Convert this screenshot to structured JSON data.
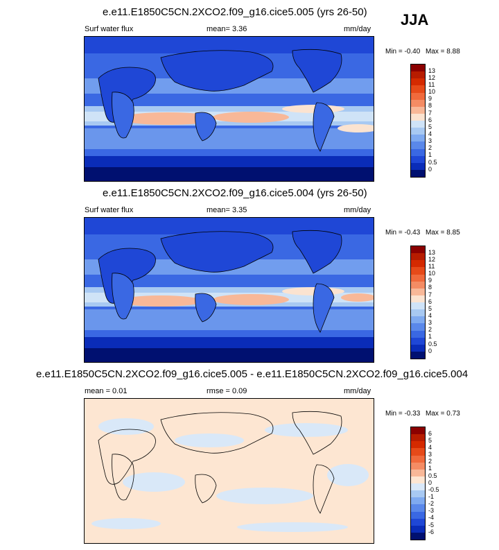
{
  "season": "JJA",
  "panels": [
    {
      "title": "e.e11.E1850C5CN.2XCO2.f09_g16.cice5.005 (yrs 26-50)",
      "left_label": "Surf water flux",
      "center_label": "mean=   3.36",
      "right_label": "mm/day",
      "min_text": "Min =  -0.40",
      "max_text": "Max =   8.88"
    },
    {
      "title": "e.e11.E1850C5CN.2XCO2.f09_g16.cice5.004 (yrs 26-50)",
      "left_label": "Surf water flux",
      "center_label": "mean=   3.35",
      "right_label": "mm/day",
      "min_text": "Min =  -0.43",
      "max_text": "Max =   8.85"
    },
    {
      "title": "e.e11.E1850C5CN.2XCO2.f09_g16.cice5.005 - e.e11.E1850C5CN.2XCO2.f09_g16.cice5.004",
      "left_label": "mean =   0.01",
      "center_label": "rmse =   0.09",
      "right_label": "mm/day",
      "min_text": "Min =  -0.33",
      "max_text": "Max =   0.73"
    }
  ],
  "colorbars": [
    {
      "labels": [
        "13",
        "12",
        "11",
        "10",
        "9",
        "8",
        "7",
        "6",
        "5",
        "4",
        "3",
        "2",
        "1",
        "0.5",
        "0"
      ],
      "colors": [
        "#8b0000",
        "#b71c00",
        "#d42a00",
        "#e64a19",
        "#f06a3c",
        "#f48c64",
        "#f8b898",
        "#fbe3d0",
        "#cfe3f7",
        "#a8c9f2",
        "#7faaf0",
        "#5a88ea",
        "#3a68e3",
        "#1f47d6",
        "#0a2cb8",
        "#001070"
      ]
    },
    {
      "labels": [
        "6",
        "5",
        "4",
        "3",
        "2",
        "1",
        "0.5",
        "0",
        "-0.5",
        "-1",
        "-2",
        "-3",
        "-4",
        "-5",
        "-6"
      ],
      "colors": [
        "#8b0000",
        "#b71c00",
        "#d42a00",
        "#e64a19",
        "#f06a3c",
        "#f48c64",
        "#f8b898",
        "#fde6d2",
        "#d9e8f8",
        "#a8c9f2",
        "#7faaf0",
        "#5a88ea",
        "#3a68e3",
        "#1f47d6",
        "#0a2cb8",
        "#001070"
      ]
    }
  ]
}
